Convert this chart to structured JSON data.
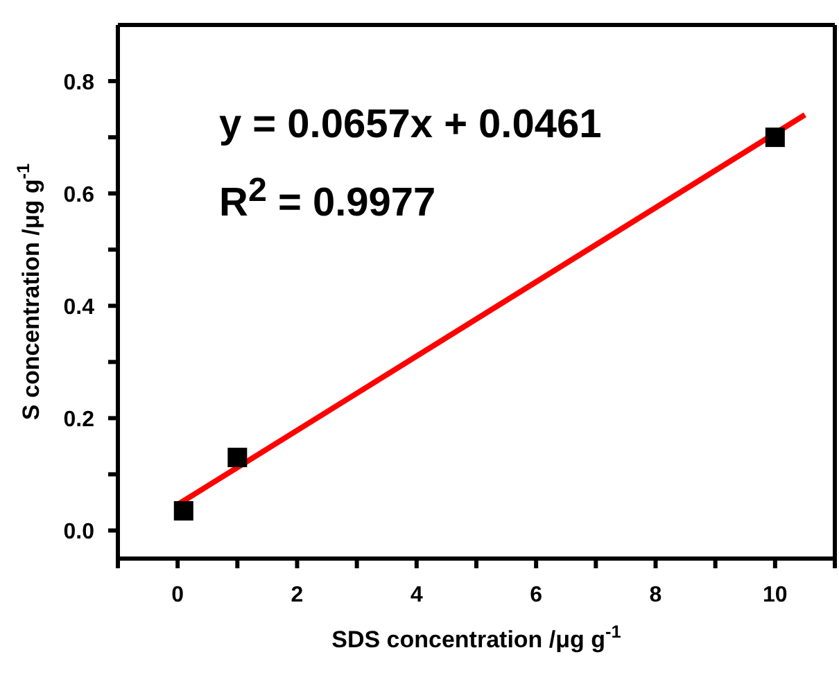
{
  "chart_data": {
    "type": "scatter",
    "xlabel": "SDS concentration /μg g$^{-1}$",
    "ylabel": "S concentration /μg g$^{-1}$",
    "annotations": [
      "y = 0.0657x + 0.0461",
      "R$^{2}$ = 0.9977"
    ],
    "series": [
      {
        "color": "#000000",
        "x": [
          0.1,
          1,
          10
        ],
        "values": [
          0.035,
          0.13,
          0.7
        ],
        "marker": "square"
      },
      {
        "type": "line",
        "color": "#ff0000",
        "x": [
          0,
          10.5
        ],
        "values": [
          0.046,
          0.74
        ],
        "marker": "none",
        "line_style": "solid"
      }
    ],
    "xlim": [
      -1,
      11
    ],
    "ylim": [
      -0.05,
      0.9
    ],
    "xticks": [
      {
        "value": -1,
        "label": null
      },
      0,
      {
        "value": 1,
        "label": null
      },
      2,
      {
        "value": 3,
        "label": null
      },
      4,
      {
        "value": 5,
        "label": null
      },
      6,
      {
        "value": 7,
        "label": null
      },
      8,
      {
        "value": 9,
        "label": null
      },
      10,
      {
        "value": 11,
        "label": null
      }
    ],
    "yticks": [
      {
        "value": 0,
        "label": "0.0"
      },
      {
        "value": 0.1,
        "label": null
      },
      0.2,
      {
        "value": 0.3,
        "label": null
      },
      0.4,
      {
        "value": 0.5,
        "label": null
      },
      0.6,
      {
        "value": 0.7,
        "label": null
      },
      0.8
    ],
    "grid": false,
    "legend": false
  }
}
